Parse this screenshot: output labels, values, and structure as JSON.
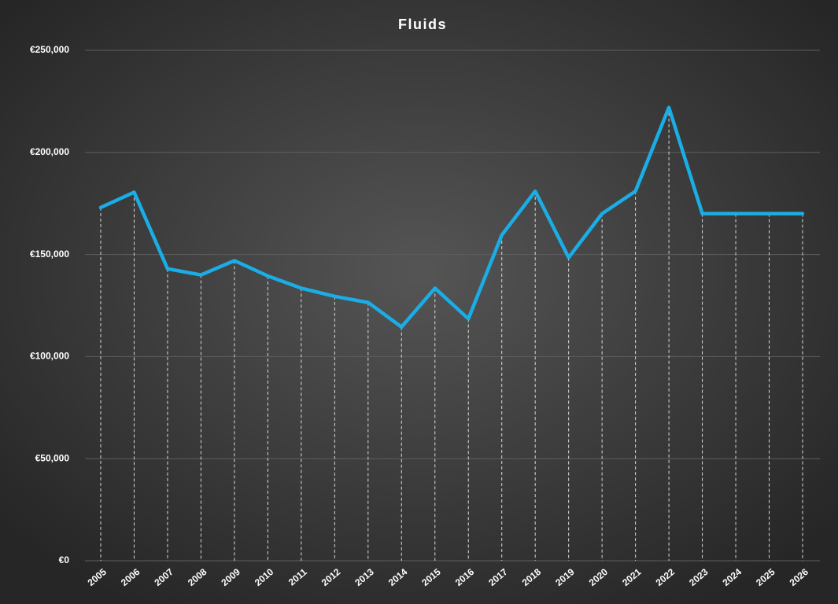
{
  "chart_data": {
    "type": "line",
    "title": "Fluids",
    "categories": [
      "2005",
      "2006",
      "2007",
      "2008",
      "2009",
      "2010",
      "2011",
      "2012",
      "2013",
      "2014",
      "2015",
      "2016",
      "2017",
      "2018",
      "2019",
      "2020",
      "2021",
      "2022",
      "2023",
      "2024",
      "2025",
      "2026"
    ],
    "series": [
      {
        "name": "Fluids",
        "color": "#1aade6",
        "values": [
          173000,
          180500,
          143000,
          140000,
          147000,
          139500,
          133500,
          129500,
          126500,
          114500,
          133500,
          118500,
          159500,
          181000,
          148500,
          170000,
          181000,
          222000,
          170000,
          170000,
          170000,
          170000
        ]
      }
    ],
    "ylim": [
      0,
      250000
    ],
    "yticks": [
      {
        "value": 0,
        "label": "€0"
      },
      {
        "value": 50000,
        "label": "€50,000"
      },
      {
        "value": 100000,
        "label": "€100,000"
      },
      {
        "value": 150000,
        "label": "€150,000"
      },
      {
        "value": 200000,
        "label": "€200,000"
      },
      {
        "value": 250000,
        "label": "€250,000"
      }
    ],
    "grid": true,
    "drop_lines": true
  }
}
